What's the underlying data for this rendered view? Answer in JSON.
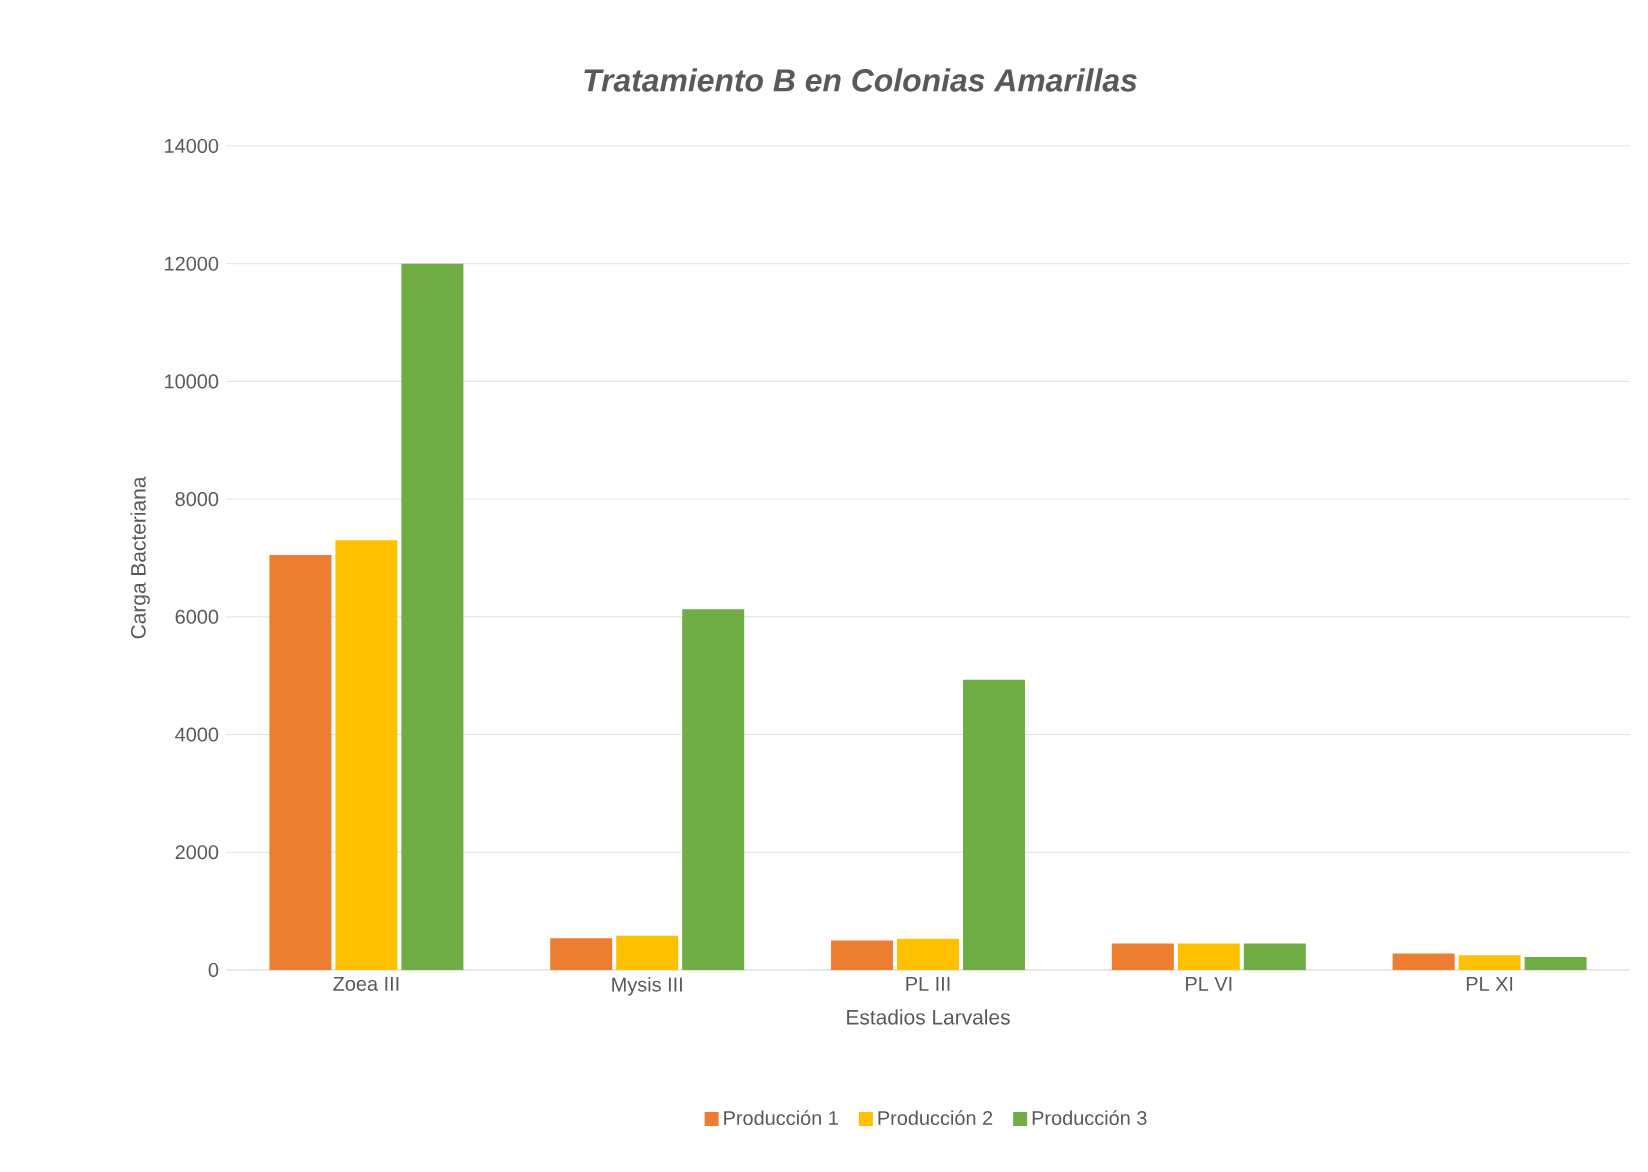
{
  "chart_data": {
    "type": "bar",
    "title": "Tratamiento B en Colonias Amarillas",
    "xlabel": "Estadios Larvales",
    "ylabel": "Carga Bacteriana",
    "categories": [
      "Zoea III",
      "Mysis III",
      "PL III",
      "PL VI",
      "PL XI"
    ],
    "series": [
      {
        "name": "Producción 1",
        "color": "#ed7d31",
        "values": [
          7050,
          540,
          500,
          450,
          280
        ]
      },
      {
        "name": "Producción 2",
        "color": "#ffc000",
        "values": [
          7300,
          580,
          530,
          450,
          250
        ]
      },
      {
        "name": "Producción 3",
        "color": "#70ad47",
        "values": [
          12000,
          6130,
          4930,
          450,
          220
        ]
      }
    ],
    "ylim": [
      0,
      14000
    ],
    "yticks": [
      0,
      2000,
      4000,
      6000,
      8000,
      10000,
      12000,
      14000
    ],
    "grid": "y",
    "legend": "bottom"
  }
}
